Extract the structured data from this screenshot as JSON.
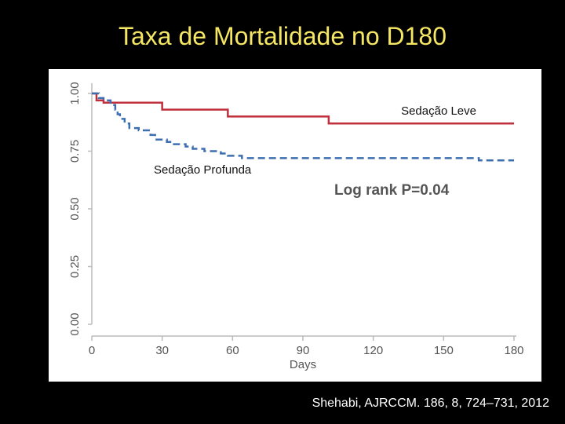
{
  "slide": {
    "title": "Taxa de Mortalidade no D180",
    "citation": "Shehabi, AJRCCM. 186, 8, 724–731, 2012"
  },
  "chart_data": {
    "type": "line",
    "step": true,
    "xlabel": "Days",
    "ylabel": "",
    "xlim": [
      0,
      180
    ],
    "ylim": [
      0,
      1
    ],
    "x_ticks": [
      0,
      30,
      60,
      90,
      120,
      150,
      180
    ],
    "x_tick_labels": [
      "0",
      "30",
      "60",
      "90",
      "120",
      "150",
      "180"
    ],
    "y_ticks": [
      0,
      0.25,
      0.5,
      0.75,
      1
    ],
    "y_tick_labels": [
      "0.00",
      "0.25",
      "0.50",
      "0.75",
      "1.00"
    ],
    "grid": false,
    "annotations": {
      "p_value": "Log rank P=0.04"
    },
    "series": [
      {
        "name": "Sedação Leve",
        "color": "#c0303c",
        "style": "solid",
        "x": [
          0,
          2,
          5,
          30,
          58,
          101,
          180
        ],
        "y": [
          1.0,
          0.97,
          0.96,
          0.93,
          0.9,
          0.87,
          0.87
        ]
      },
      {
        "name": "Sedação Profunda",
        "color": "#3d6fb0",
        "style": "dashed",
        "x": [
          0,
          3,
          5,
          8,
          10,
          11,
          12,
          14,
          16,
          20,
          25,
          27,
          32,
          35,
          40,
          43,
          48,
          55,
          58,
          64,
          75,
          90,
          110,
          140,
          160,
          165,
          180
        ],
        "y": [
          1.0,
          0.98,
          0.97,
          0.95,
          0.93,
          0.91,
          0.89,
          0.87,
          0.85,
          0.84,
          0.82,
          0.8,
          0.79,
          0.78,
          0.77,
          0.76,
          0.75,
          0.74,
          0.73,
          0.72,
          0.72,
          0.72,
          0.72,
          0.72,
          0.72,
          0.71,
          0.71
        ]
      }
    ]
  }
}
